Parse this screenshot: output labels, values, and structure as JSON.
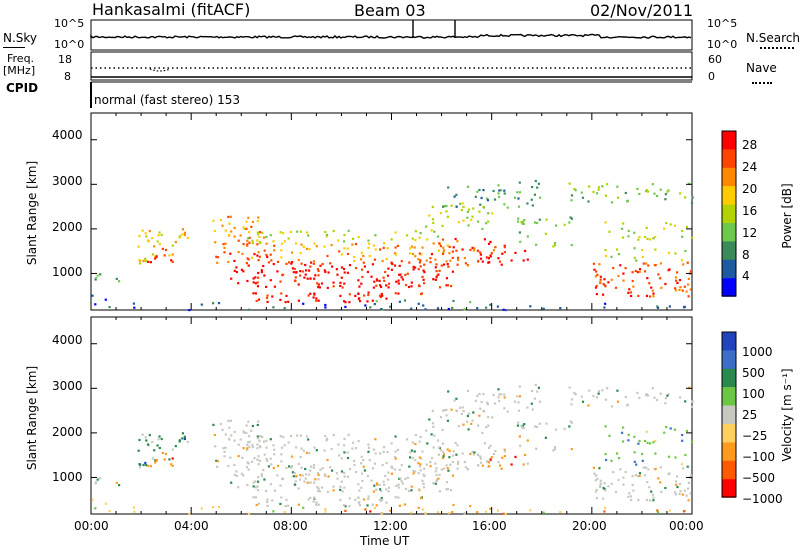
{
  "header": {
    "station": "Hankasalmi (fitACF)",
    "beam": "Beam 03",
    "date": "02/Nov/2011"
  },
  "noise_panel": {
    "left_label": "N.Sky",
    "right_label": "N.Search",
    "left_ticks": [
      "10^5",
      "10^0"
    ],
    "right_ticks": [
      "10^5",
      "10^0"
    ]
  },
  "freq_panel": {
    "left_label_1": "Freq.",
    "left_label_2": "[MHz]",
    "right_label": "Nave",
    "left_ticks": [
      "18",
      "8"
    ],
    "right_ticks": [
      "60",
      "0"
    ]
  },
  "cpid": {
    "label": "CPID",
    "value": "normal (fast stereo) 153"
  },
  "chart_data": [
    {
      "type": "heatmap",
      "name": "power",
      "ylabel": "Slant Range [km]",
      "xlabel": "",
      "ylim": [
        180,
        4600
      ],
      "yticks": [
        "1000",
        "2000",
        "3000",
        "4000"
      ],
      "xticks": [],
      "colorbar": {
        "label": "Power [dB]",
        "ticks": [
          "28",
          "24",
          "20",
          "16",
          "12",
          "8",
          "4"
        ],
        "colors": [
          "#ff0000",
          "#ff4400",
          "#ff8800",
          "#ffcc00",
          "#b4d200",
          "#6ec84c",
          "#3a8a5a",
          "#1e5aa0",
          "#0000ff"
        ]
      }
    },
    {
      "type": "heatmap",
      "name": "velocity",
      "ylabel": "Slant Range [km]",
      "xlabel": "Time UT",
      "ylim": [
        180,
        4600
      ],
      "yticks": [
        "1000",
        "2000",
        "3000",
        "4000"
      ],
      "xticks": [
        "00:00",
        "04:00",
        "08:00",
        "12:00",
        "16:00",
        "20:00",
        "00:00"
      ],
      "colorbar": {
        "label": "Velocity [m s⁻¹]",
        "ticks": [
          "1000",
          "500",
          "100",
          "25",
          "−25",
          "−100",
          "−500",
          "−1000"
        ],
        "colors": [
          "#2244bb",
          "#3c6ec8",
          "#2a8a4e",
          "#6cc844",
          "#c8c8c0",
          "#ffd060",
          "#ff9a1e",
          "#ff5a00",
          "#ff0000"
        ]
      }
    }
  ]
}
